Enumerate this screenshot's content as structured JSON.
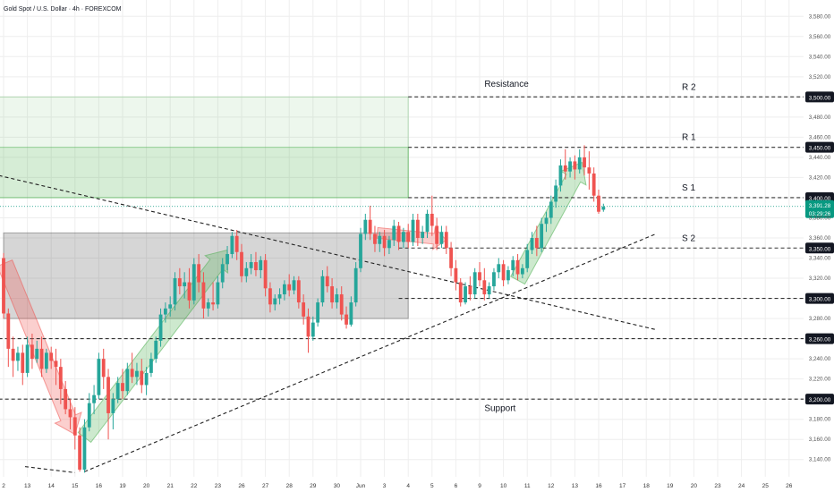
{
  "header": {
    "symbol_title": "Gold Spot / U.S. Dollar · 4h · FOREXCOM"
  },
  "colors": {
    "up": "#26a69a",
    "down": "#ef5350",
    "grid": "#eeeeee",
    "level_line": "#333333",
    "trend_line": "#222222",
    "price_tag": "#089981"
  },
  "chart_data": {
    "type": "candlestick",
    "y_range": [
      3130,
      3590
    ],
    "y_ticks": [
      3140,
      3160,
      3180,
      3200,
      3220,
      3240,
      3260,
      3280,
      3300,
      3320,
      3340,
      3360,
      3380,
      3400,
      3420,
      3440,
      3460,
      3480,
      3500,
      3520,
      3540,
      3560,
      3580
    ],
    "x_ticks": [
      {
        "label": "2",
        "x": 0
      },
      {
        "label": "13",
        "x": 1
      },
      {
        "label": "14",
        "x": 2
      },
      {
        "label": "15",
        "x": 3
      },
      {
        "label": "16",
        "x": 4
      },
      {
        "label": "19",
        "x": 5
      },
      {
        "label": "20",
        "x": 6
      },
      {
        "label": "21",
        "x": 7
      },
      {
        "label": "22",
        "x": 8
      },
      {
        "label": "23",
        "x": 9
      },
      {
        "label": "26",
        "x": 10
      },
      {
        "label": "27",
        "x": 11
      },
      {
        "label": "28",
        "x": 12
      },
      {
        "label": "29",
        "x": 13
      },
      {
        "label": "30",
        "x": 14
      },
      {
        "label": "Jun",
        "x": 15
      },
      {
        "label": "3",
        "x": 16
      },
      {
        "label": "4",
        "x": 17
      },
      {
        "label": "5",
        "x": 18
      },
      {
        "label": "6",
        "x": 19
      },
      {
        "label": "9",
        "x": 20
      },
      {
        "label": "10",
        "x": 21
      },
      {
        "label": "11",
        "x": 22
      },
      {
        "label": "12",
        "x": 23
      },
      {
        "label": "13",
        "x": 24
      },
      {
        "label": "16",
        "x": 25
      },
      {
        "label": "17",
        "x": 26
      },
      {
        "label": "18",
        "x": 27
      },
      {
        "label": "19",
        "x": 28
      },
      {
        "label": "20",
        "x": 29
      },
      {
        "label": "23",
        "x": 30
      },
      {
        "label": "24",
        "x": 31
      },
      {
        "label": "25",
        "x": 32
      },
      {
        "label": "26",
        "x": 33
      }
    ],
    "candles": [
      {
        "x": 0.0,
        "o": 3340,
        "h": 3345,
        "c": 3285,
        "l": 3280
      },
      {
        "x": 0.2,
        "o": 3285,
        "h": 3290,
        "c": 3250,
        "l": 3232
      },
      {
        "x": 0.4,
        "o": 3250,
        "h": 3262,
        "c": 3238,
        "l": 3222
      },
      {
        "x": 0.6,
        "o": 3238,
        "h": 3252,
        "c": 3246,
        "l": 3228
      },
      {
        "x": 0.8,
        "o": 3246,
        "h": 3254,
        "c": 3226,
        "l": 3214
      },
      {
        "x": 1.0,
        "o": 3226,
        "h": 3262,
        "c": 3254,
        "l": 3222
      },
      {
        "x": 1.2,
        "o": 3254,
        "h": 3265,
        "c": 3240,
        "l": 3230
      },
      {
        "x": 1.4,
        "o": 3240,
        "h": 3258,
        "c": 3250,
        "l": 3236
      },
      {
        "x": 1.6,
        "o": 3250,
        "h": 3262,
        "c": 3230,
        "l": 3222
      },
      {
        "x": 1.8,
        "o": 3230,
        "h": 3250,
        "c": 3246,
        "l": 3226
      },
      {
        "x": 2.0,
        "o": 3246,
        "h": 3252,
        "c": 3238,
        "l": 3230
      },
      {
        "x": 2.2,
        "o": 3238,
        "h": 3250,
        "c": 3232,
        "l": 3214
      },
      {
        "x": 2.4,
        "o": 3232,
        "h": 3240,
        "c": 3210,
        "l": 3195
      },
      {
        "x": 2.6,
        "o": 3210,
        "h": 3218,
        "c": 3190,
        "l": 3185
      },
      {
        "x": 2.8,
        "o": 3190,
        "h": 3200,
        "c": 3182,
        "l": 3170
      },
      {
        "x": 3.0,
        "o": 3182,
        "h": 3192,
        "c": 3164,
        "l": 3150
      },
      {
        "x": 3.2,
        "o": 3164,
        "h": 3172,
        "c": 3130,
        "l": 3128
      },
      {
        "x": 3.4,
        "o": 3130,
        "h": 3180,
        "c": 3172,
        "l": 3127
      },
      {
        "x": 3.6,
        "o": 3172,
        "h": 3206,
        "c": 3196,
        "l": 3168
      },
      {
        "x": 3.8,
        "o": 3196,
        "h": 3214,
        "c": 3204,
        "l": 3185
      },
      {
        "x": 4.0,
        "o": 3204,
        "h": 3246,
        "c": 3240,
        "l": 3200
      },
      {
        "x": 4.2,
        "o": 3240,
        "h": 3250,
        "c": 3222,
        "l": 3210
      },
      {
        "x": 4.4,
        "o": 3222,
        "h": 3230,
        "c": 3186,
        "l": 3160
      },
      {
        "x": 4.6,
        "o": 3186,
        "h": 3206,
        "c": 3200,
        "l": 3170
      },
      {
        "x": 4.8,
        "o": 3200,
        "h": 3222,
        "c": 3216,
        "l": 3196
      },
      {
        "x": 5.0,
        "o": 3216,
        "h": 3230,
        "c": 3208,
        "l": 3200
      },
      {
        "x": 5.2,
        "o": 3208,
        "h": 3236,
        "c": 3230,
        "l": 3204
      },
      {
        "x": 5.4,
        "o": 3230,
        "h": 3246,
        "c": 3222,
        "l": 3216
      },
      {
        "x": 5.6,
        "o": 3222,
        "h": 3236,
        "c": 3228,
        "l": 3214
      },
      {
        "x": 5.8,
        "o": 3228,
        "h": 3240,
        "c": 3214,
        "l": 3206
      },
      {
        "x": 6.0,
        "o": 3214,
        "h": 3232,
        "c": 3226,
        "l": 3204
      },
      {
        "x": 6.2,
        "o": 3226,
        "h": 3246,
        "c": 3240,
        "l": 3222
      },
      {
        "x": 6.4,
        "o": 3240,
        "h": 3262,
        "c": 3258,
        "l": 3236
      },
      {
        "x": 6.6,
        "o": 3258,
        "h": 3290,
        "c": 3284,
        "l": 3252
      },
      {
        "x": 6.8,
        "o": 3284,
        "h": 3296,
        "c": 3290,
        "l": 3276
      },
      {
        "x": 7.0,
        "o": 3290,
        "h": 3302,
        "c": 3294,
        "l": 3282
      },
      {
        "x": 7.2,
        "o": 3294,
        "h": 3326,
        "c": 3320,
        "l": 3288
      },
      {
        "x": 7.4,
        "o": 3320,
        "h": 3330,
        "c": 3312,
        "l": 3304
      },
      {
        "x": 7.6,
        "o": 3312,
        "h": 3326,
        "c": 3316,
        "l": 3300
      },
      {
        "x": 7.8,
        "o": 3316,
        "h": 3330,
        "c": 3298,
        "l": 3290
      },
      {
        "x": 8.0,
        "o": 3298,
        "h": 3340,
        "c": 3334,
        "l": 3294
      },
      {
        "x": 8.2,
        "o": 3334,
        "h": 3344,
        "c": 3316,
        "l": 3306
      },
      {
        "x": 8.4,
        "o": 3316,
        "h": 3326,
        "c": 3290,
        "l": 3280
      },
      {
        "x": 8.6,
        "o": 3290,
        "h": 3300,
        "c": 3296,
        "l": 3282
      },
      {
        "x": 8.8,
        "o": 3296,
        "h": 3316,
        "c": 3294,
        "l": 3288
      },
      {
        "x": 9.0,
        "o": 3294,
        "h": 3322,
        "c": 3316,
        "l": 3290
      },
      {
        "x": 9.2,
        "o": 3316,
        "h": 3340,
        "c": 3334,
        "l": 3310
      },
      {
        "x": 9.4,
        "o": 3334,
        "h": 3352,
        "c": 3344,
        "l": 3328
      },
      {
        "x": 9.6,
        "o": 3344,
        "h": 3366,
        "c": 3362,
        "l": 3340
      },
      {
        "x": 9.8,
        "o": 3362,
        "h": 3368,
        "c": 3346,
        "l": 3338
      },
      {
        "x": 10.0,
        "o": 3346,
        "h": 3354,
        "c": 3322,
        "l": 3316
      },
      {
        "x": 10.2,
        "o": 3322,
        "h": 3336,
        "c": 3330,
        "l": 3316
      },
      {
        "x": 10.4,
        "o": 3330,
        "h": 3344,
        "c": 3336,
        "l": 3324
      },
      {
        "x": 10.6,
        "o": 3336,
        "h": 3346,
        "c": 3328,
        "l": 3322
      },
      {
        "x": 10.8,
        "o": 3328,
        "h": 3342,
        "c": 3338,
        "l": 3320
      },
      {
        "x": 11.0,
        "o": 3338,
        "h": 3344,
        "c": 3310,
        "l": 3302
      },
      {
        "x": 11.2,
        "o": 3310,
        "h": 3316,
        "c": 3294,
        "l": 3286
      },
      {
        "x": 11.4,
        "o": 3294,
        "h": 3304,
        "c": 3300,
        "l": 3288
      },
      {
        "x": 11.6,
        "o": 3300,
        "h": 3310,
        "c": 3304,
        "l": 3294
      },
      {
        "x": 11.8,
        "o": 3304,
        "h": 3318,
        "c": 3314,
        "l": 3298
      },
      {
        "x": 12.0,
        "o": 3314,
        "h": 3324,
        "c": 3308,
        "l": 3302
      },
      {
        "x": 12.2,
        "o": 3308,
        "h": 3322,
        "c": 3318,
        "l": 3304
      },
      {
        "x": 12.4,
        "o": 3318,
        "h": 3322,
        "c": 3296,
        "l": 3290
      },
      {
        "x": 12.6,
        "o": 3296,
        "h": 3304,
        "c": 3282,
        "l": 3274
      },
      {
        "x": 12.8,
        "o": 3282,
        "h": 3290,
        "c": 3262,
        "l": 3246
      },
      {
        "x": 13.0,
        "o": 3262,
        "h": 3282,
        "c": 3276,
        "l": 3258
      },
      {
        "x": 13.2,
        "o": 3276,
        "h": 3300,
        "c": 3296,
        "l": 3272
      },
      {
        "x": 13.4,
        "o": 3296,
        "h": 3328,
        "c": 3322,
        "l": 3292
      },
      {
        "x": 13.6,
        "o": 3322,
        "h": 3332,
        "c": 3312,
        "l": 3306
      },
      {
        "x": 13.8,
        "o": 3312,
        "h": 3320,
        "c": 3296,
        "l": 3290
      },
      {
        "x": 14.0,
        "o": 3296,
        "h": 3310,
        "c": 3304,
        "l": 3290
      },
      {
        "x": 14.2,
        "o": 3304,
        "h": 3312,
        "c": 3284,
        "l": 3278
      },
      {
        "x": 14.4,
        "o": 3284,
        "h": 3292,
        "c": 3274,
        "l": 3270
      },
      {
        "x": 14.6,
        "o": 3274,
        "h": 3302,
        "c": 3296,
        "l": 3272
      },
      {
        "x": 14.8,
        "o": 3296,
        "h": 3336,
        "c": 3330,
        "l": 3292
      },
      {
        "x": 15.0,
        "o": 3330,
        "h": 3370,
        "c": 3364,
        "l": 3326
      },
      {
        "x": 15.2,
        "o": 3364,
        "h": 3384,
        "c": 3378,
        "l": 3358
      },
      {
        "x": 15.4,
        "o": 3378,
        "h": 3392,
        "c": 3364,
        "l": 3358
      },
      {
        "x": 15.6,
        "o": 3364,
        "h": 3372,
        "c": 3354,
        "l": 3346
      },
      {
        "x": 15.8,
        "o": 3354,
        "h": 3366,
        "c": 3362,
        "l": 3346
      },
      {
        "x": 16.0,
        "o": 3362,
        "h": 3368,
        "c": 3350,
        "l": 3342
      },
      {
        "x": 16.2,
        "o": 3350,
        "h": 3362,
        "c": 3358,
        "l": 3344
      },
      {
        "x": 16.4,
        "o": 3358,
        "h": 3378,
        "c": 3372,
        "l": 3352
      },
      {
        "x": 16.6,
        "o": 3372,
        "h": 3376,
        "c": 3356,
        "l": 3348
      },
      {
        "x": 16.8,
        "o": 3356,
        "h": 3370,
        "c": 3366,
        "l": 3350
      },
      {
        "x": 17.0,
        "o": 3366,
        "h": 3374,
        "c": 3356,
        "l": 3350
      },
      {
        "x": 17.2,
        "o": 3356,
        "h": 3384,
        "c": 3378,
        "l": 3352
      },
      {
        "x": 17.4,
        "o": 3378,
        "h": 3384,
        "c": 3360,
        "l": 3352
      },
      {
        "x": 17.6,
        "o": 3360,
        "h": 3372,
        "c": 3366,
        "l": 3354
      },
      {
        "x": 17.8,
        "o": 3366,
        "h": 3388,
        "c": 3384,
        "l": 3360
      },
      {
        "x": 18.0,
        "o": 3384,
        "h": 3402,
        "c": 3372,
        "l": 3362
      },
      {
        "x": 18.2,
        "o": 3372,
        "h": 3380,
        "c": 3354,
        "l": 3348
      },
      {
        "x": 18.4,
        "o": 3354,
        "h": 3372,
        "c": 3366,
        "l": 3350
      },
      {
        "x": 18.6,
        "o": 3366,
        "h": 3372,
        "c": 3350,
        "l": 3344
      },
      {
        "x": 18.8,
        "o": 3350,
        "h": 3356,
        "c": 3330,
        "l": 3322
      },
      {
        "x": 19.0,
        "o": 3330,
        "h": 3338,
        "c": 3316,
        "l": 3308
      },
      {
        "x": 19.2,
        "o": 3316,
        "h": 3320,
        "c": 3296,
        "l": 3292
      },
      {
        "x": 19.4,
        "o": 3296,
        "h": 3316,
        "c": 3312,
        "l": 3294
      },
      {
        "x": 19.6,
        "o": 3312,
        "h": 3322,
        "c": 3304,
        "l": 3298
      },
      {
        "x": 19.8,
        "o": 3304,
        "h": 3330,
        "c": 3326,
        "l": 3300
      },
      {
        "x": 20.0,
        "o": 3326,
        "h": 3336,
        "c": 3318,
        "l": 3312
      },
      {
        "x": 20.2,
        "o": 3318,
        "h": 3330,
        "c": 3304,
        "l": 3298
      },
      {
        "x": 20.4,
        "o": 3304,
        "h": 3316,
        "c": 3312,
        "l": 3300
      },
      {
        "x": 20.6,
        "o": 3312,
        "h": 3330,
        "c": 3326,
        "l": 3308
      },
      {
        "x": 20.8,
        "o": 3326,
        "h": 3340,
        "c": 3334,
        "l": 3320
      },
      {
        "x": 21.0,
        "o": 3334,
        "h": 3338,
        "c": 3318,
        "l": 3312
      },
      {
        "x": 21.2,
        "o": 3318,
        "h": 3332,
        "c": 3328,
        "l": 3314
      },
      {
        "x": 21.4,
        "o": 3328,
        "h": 3342,
        "c": 3338,
        "l": 3322
      },
      {
        "x": 21.6,
        "o": 3338,
        "h": 3344,
        "c": 3324,
        "l": 3318
      },
      {
        "x": 21.8,
        "o": 3324,
        "h": 3334,
        "c": 3330,
        "l": 3320
      },
      {
        "x": 22.0,
        "o": 3330,
        "h": 3354,
        "c": 3348,
        "l": 3326
      },
      {
        "x": 22.2,
        "o": 3348,
        "h": 3366,
        "c": 3360,
        "l": 3344
      },
      {
        "x": 22.4,
        "o": 3360,
        "h": 3372,
        "c": 3350,
        "l": 3342
      },
      {
        "x": 22.6,
        "o": 3350,
        "h": 3380,
        "c": 3374,
        "l": 3346
      },
      {
        "x": 22.8,
        "o": 3374,
        "h": 3386,
        "c": 3380,
        "l": 3366
      },
      {
        "x": 23.0,
        "o": 3380,
        "h": 3402,
        "c": 3396,
        "l": 3374
      },
      {
        "x": 23.2,
        "o": 3396,
        "h": 3418,
        "c": 3412,
        "l": 3390
      },
      {
        "x": 23.4,
        "o": 3412,
        "h": 3438,
        "c": 3432,
        "l": 3406
      },
      {
        "x": 23.6,
        "o": 3432,
        "h": 3448,
        "c": 3426,
        "l": 3418
      },
      {
        "x": 23.8,
        "o": 3426,
        "h": 3440,
        "c": 3436,
        "l": 3420
      },
      {
        "x": 24.0,
        "o": 3436,
        "h": 3442,
        "c": 3428,
        "l": 3418
      },
      {
        "x": 24.2,
        "o": 3428,
        "h": 3448,
        "c": 3440,
        "l": 3424
      },
      {
        "x": 24.4,
        "o": 3440,
        "h": 3452,
        "c": 3430,
        "l": 3422
      },
      {
        "x": 24.6,
        "o": 3430,
        "h": 3446,
        "c": 3424,
        "l": 3408
      },
      {
        "x": 24.8,
        "o": 3424,
        "h": 3430,
        "c": 3402,
        "l": 3396
      },
      {
        "x": 25.0,
        "o": 3402,
        "h": 3408,
        "c": 3386,
        "l": 3384
      },
      {
        "x": 25.2,
        "o": 3388,
        "h": 3394,
        "c": 3391,
        "l": 3386
      }
    ],
    "levels": [
      {
        "price": 3500,
        "label": "3,500.00",
        "name": "R 2",
        "x1": 17.0
      },
      {
        "price": 3450,
        "label": "3,450.00",
        "name": "R 1",
        "x1": 17.0
      },
      {
        "price": 3400,
        "label": "3,400.00",
        "name": "S 1",
        "x1": 17.0
      },
      {
        "price": 3350,
        "label": "3,350.00",
        "name": "S 2",
        "x1": 16.6
      },
      {
        "price": 3300,
        "label": "3,300.00",
        "name": "",
        "x1": 16.6
      },
      {
        "price": 3260,
        "label": "3,260.00",
        "name": "",
        "x1": -0.2
      },
      {
        "price": 3200,
        "label": "3,200.00",
        "name": "",
        "x1": -0.2
      }
    ],
    "zone_labels": [
      {
        "text": "Resistance",
        "x": 20.2,
        "y": 3510
      },
      {
        "text": "Support",
        "x": 20.2,
        "y": 3188
      }
    ],
    "zones": [
      {
        "x0": -0.2,
        "x1": 17.0,
        "y0": 3400,
        "y1": 3500,
        "kind": "green-light"
      },
      {
        "x0": -0.2,
        "x1": 17.0,
        "y0": 3400,
        "y1": 3450,
        "kind": "green"
      },
      {
        "x0": 0.0,
        "x1": 17.0,
        "y0": 3280,
        "y1": 3365,
        "kind": "gray"
      }
    ],
    "trend_lines": [
      {
        "x0": -0.2,
        "y0": 3422,
        "x1": 27.4,
        "y1": 3269
      },
      {
        "x0": 3.4,
        "y0": 3128,
        "x1": 27.4,
        "y1": 3364
      },
      {
        "x0": 0.9,
        "y0": 3133,
        "x1": 3.0,
        "y1": 3127
      }
    ],
    "arrows": [
      {
        "kind": "down",
        "pts": [
          [
            0.05,
            3335
          ],
          [
            3.0,
            3165
          ]
        ]
      },
      {
        "kind": "up",
        "pts": [
          [
            3.4,
            3162
          ],
          [
            9.4,
            3348
          ]
        ]
      },
      {
        "kind": "down-small",
        "pts": [
          [
            15.7,
            3365
          ],
          [
            18.6,
            3358
          ]
        ]
      },
      {
        "kind": "up",
        "pts": [
          [
            21.6,
            3318
          ],
          [
            24.3,
            3435
          ]
        ]
      }
    ],
    "last_price": {
      "value": 3391.28,
      "label": "3,391.28",
      "countdown": "03:29:26"
    }
  }
}
